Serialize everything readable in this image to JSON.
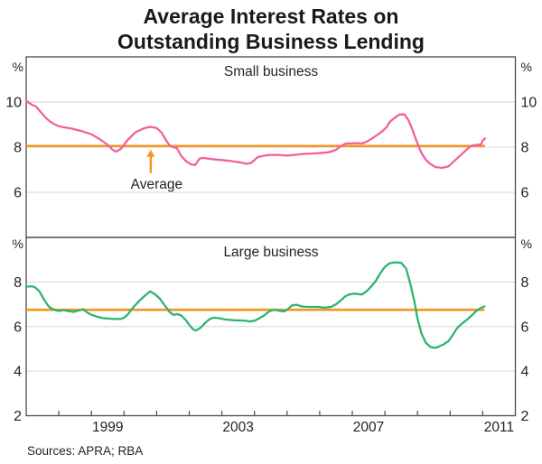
{
  "title": {
    "line1": "Average Interest Rates on",
    "line2": "Outstanding Business Lending"
  },
  "sources": "Sources: APRA; RBA",
  "colors": {
    "small_business": "#f2609e",
    "large_business": "#2db470",
    "average": "#f7941d",
    "grid": "#d6d6d6",
    "frame": "#4b4b4d",
    "text": "#231f20"
  },
  "chart_data": {
    "type": "line",
    "title": "Average Interest Rates on Outstanding Business Lending",
    "x_axis": {
      "xlim": [
        1997,
        2012
      ],
      "tick_years": [
        1998,
        1999,
        2000,
        2001,
        2002,
        2003,
        2004,
        2005,
        2006,
        2007,
        2008,
        2009,
        2010,
        2011
      ],
      "year_labels": [
        {
          "text": "1999",
          "year": 1999.5
        },
        {
          "text": "2003",
          "year": 2003.5
        },
        {
          "text": "2007",
          "year": 2007.5
        },
        {
          "text": "2011",
          "year": 2011.5
        }
      ]
    },
    "panels": [
      {
        "label": "Small business",
        "unit": "%",
        "ylim": [
          4,
          12
        ],
        "yticks": [
          6,
          8,
          10
        ],
        "average": 8.05,
        "annotation": {
          "text": "Average",
          "arrow_year": 2000.82,
          "text_year": 2001.0
        },
        "series": {
          "name": "Small business",
          "color_key": "small_business",
          "points": [
            [
              1997.0,
              10.05
            ],
            [
              1997.15,
              9.9
            ],
            [
              1997.3,
              9.8
            ],
            [
              1997.45,
              9.55
            ],
            [
              1997.6,
              9.3
            ],
            [
              1997.72,
              9.15
            ],
            [
              1997.86,
              9.02
            ],
            [
              1998.0,
              8.93
            ],
            [
              1998.15,
              8.88
            ],
            [
              1998.4,
              8.82
            ],
            [
              1998.7,
              8.71
            ],
            [
              1999.0,
              8.57
            ],
            [
              1999.25,
              8.36
            ],
            [
              1999.5,
              8.1
            ],
            [
              1999.65,
              7.88
            ],
            [
              1999.75,
              7.8
            ],
            [
              1999.9,
              7.92
            ],
            [
              2000.1,
              8.3
            ],
            [
              2000.35,
              8.66
            ],
            [
              2000.6,
              8.83
            ],
            [
              2000.8,
              8.9
            ],
            [
              2001.0,
              8.85
            ],
            [
              2001.15,
              8.65
            ],
            [
              2001.3,
              8.28
            ],
            [
              2001.4,
              8.08
            ],
            [
              2001.5,
              8.0
            ],
            [
              2001.62,
              7.96
            ],
            [
              2001.75,
              7.62
            ],
            [
              2001.9,
              7.38
            ],
            [
              2002.05,
              7.24
            ],
            [
              2002.18,
              7.21
            ],
            [
              2002.32,
              7.5
            ],
            [
              2002.45,
              7.52
            ],
            [
              2002.7,
              7.47
            ],
            [
              2003.0,
              7.43
            ],
            [
              2003.3,
              7.38
            ],
            [
              2003.55,
              7.33
            ],
            [
              2003.75,
              7.26
            ],
            [
              2003.9,
              7.3
            ],
            [
              2004.1,
              7.56
            ],
            [
              2004.4,
              7.65
            ],
            [
              2004.7,
              7.66
            ],
            [
              2005.0,
              7.63
            ],
            [
              2005.25,
              7.66
            ],
            [
              2005.5,
              7.7
            ],
            [
              2005.8,
              7.72
            ],
            [
              2006.1,
              7.75
            ],
            [
              2006.3,
              7.78
            ],
            [
              2006.5,
              7.88
            ],
            [
              2006.65,
              8.05
            ],
            [
              2006.8,
              8.16
            ],
            [
              2007.0,
              8.17
            ],
            [
              2007.15,
              8.18
            ],
            [
              2007.3,
              8.16
            ],
            [
              2007.45,
              8.25
            ],
            [
              2007.6,
              8.38
            ],
            [
              2007.75,
              8.53
            ],
            [
              2007.9,
              8.68
            ],
            [
              2008.05,
              8.88
            ],
            [
              2008.15,
              9.12
            ],
            [
              2008.3,
              9.3
            ],
            [
              2008.45,
              9.45
            ],
            [
              2008.6,
              9.45
            ],
            [
              2008.72,
              9.2
            ],
            [
              2008.85,
              8.75
            ],
            [
              2008.95,
              8.35
            ],
            [
              2009.1,
              7.8
            ],
            [
              2009.25,
              7.45
            ],
            [
              2009.4,
              7.25
            ],
            [
              2009.55,
              7.12
            ],
            [
              2009.75,
              7.08
            ],
            [
              2009.95,
              7.15
            ],
            [
              2010.1,
              7.35
            ],
            [
              2010.25,
              7.55
            ],
            [
              2010.4,
              7.75
            ],
            [
              2010.55,
              7.95
            ],
            [
              2010.65,
              8.06
            ],
            [
              2010.8,
              8.1
            ],
            [
              2010.95,
              8.12
            ],
            [
              2011.0,
              8.3
            ],
            [
              2011.07,
              8.38
            ]
          ]
        }
      },
      {
        "label": "Large business",
        "unit": "%",
        "ylim": [
          2,
          10
        ],
        "yticks": [
          4,
          6,
          8
        ],
        "average": 6.75,
        "annotation": null,
        "series": {
          "name": "Large business",
          "color_key": "large_business",
          "points": [
            [
              1997.0,
              7.78
            ],
            [
              1997.12,
              7.81
            ],
            [
              1997.25,
              7.78
            ],
            [
              1997.4,
              7.6
            ],
            [
              1997.55,
              7.2
            ],
            [
              1997.7,
              6.88
            ],
            [
              1997.85,
              6.76
            ],
            [
              1998.0,
              6.7
            ],
            [
              1998.15,
              6.74
            ],
            [
              1998.3,
              6.69
            ],
            [
              1998.45,
              6.66
            ],
            [
              1998.6,
              6.72
            ],
            [
              1998.75,
              6.78
            ],
            [
              1998.85,
              6.65
            ],
            [
              1999.0,
              6.53
            ],
            [
              1999.15,
              6.45
            ],
            [
              1999.35,
              6.38
            ],
            [
              1999.6,
              6.35
            ],
            [
              1999.9,
              6.34
            ],
            [
              2000.0,
              6.4
            ],
            [
              2000.12,
              6.55
            ],
            [
              2000.22,
              6.75
            ],
            [
              2000.35,
              6.97
            ],
            [
              2000.5,
              7.2
            ],
            [
              2000.65,
              7.4
            ],
            [
              2000.8,
              7.58
            ],
            [
              2000.95,
              7.45
            ],
            [
              2001.1,
              7.25
            ],
            [
              2001.25,
              6.95
            ],
            [
              2001.4,
              6.65
            ],
            [
              2001.52,
              6.52
            ],
            [
              2001.62,
              6.56
            ],
            [
              2001.75,
              6.5
            ],
            [
              2001.88,
              6.32
            ],
            [
              2002.0,
              6.08
            ],
            [
              2002.1,
              5.9
            ],
            [
              2002.2,
              5.82
            ],
            [
              2002.35,
              5.95
            ],
            [
              2002.5,
              6.18
            ],
            [
              2002.62,
              6.33
            ],
            [
              2002.75,
              6.4
            ],
            [
              2002.9,
              6.38
            ],
            [
              2003.1,
              6.32
            ],
            [
              2003.4,
              6.28
            ],
            [
              2003.7,
              6.27
            ],
            [
              2003.85,
              6.23
            ],
            [
              2004.0,
              6.26
            ],
            [
              2004.15,
              6.37
            ],
            [
              2004.3,
              6.5
            ],
            [
              2004.45,
              6.68
            ],
            [
              2004.6,
              6.76
            ],
            [
              2004.75,
              6.71
            ],
            [
              2004.9,
              6.68
            ],
            [
              2005.0,
              6.75
            ],
            [
              2005.15,
              6.95
            ],
            [
              2005.3,
              6.98
            ],
            [
              2005.45,
              6.9
            ],
            [
              2005.65,
              6.88
            ],
            [
              2005.95,
              6.88
            ],
            [
              2006.15,
              6.85
            ],
            [
              2006.35,
              6.88
            ],
            [
              2006.5,
              7.0
            ],
            [
              2006.65,
              7.18
            ],
            [
              2006.78,
              7.35
            ],
            [
              2006.9,
              7.44
            ],
            [
              2007.05,
              7.48
            ],
            [
              2007.3,
              7.44
            ],
            [
              2007.45,
              7.6
            ],
            [
              2007.6,
              7.83
            ],
            [
              2007.72,
              8.05
            ],
            [
              2007.85,
              8.37
            ],
            [
              2008.0,
              8.68
            ],
            [
              2008.15,
              8.84
            ],
            [
              2008.3,
              8.88
            ],
            [
              2008.5,
              8.86
            ],
            [
              2008.65,
              8.6
            ],
            [
              2008.78,
              7.9
            ],
            [
              2008.9,
              7.15
            ],
            [
              2009.0,
              6.35
            ],
            [
              2009.12,
              5.7
            ],
            [
              2009.25,
              5.28
            ],
            [
              2009.4,
              5.08
            ],
            [
              2009.55,
              5.04
            ],
            [
              2009.68,
              5.12
            ],
            [
              2009.8,
              5.2
            ],
            [
              2009.95,
              5.35
            ],
            [
              2010.08,
              5.62
            ],
            [
              2010.2,
              5.9
            ],
            [
              2010.3,
              6.05
            ],
            [
              2010.42,
              6.2
            ],
            [
              2010.55,
              6.35
            ],
            [
              2010.68,
              6.52
            ],
            [
              2010.8,
              6.7
            ],
            [
              2010.92,
              6.82
            ],
            [
              2011.05,
              6.9
            ]
          ]
        }
      }
    ]
  }
}
